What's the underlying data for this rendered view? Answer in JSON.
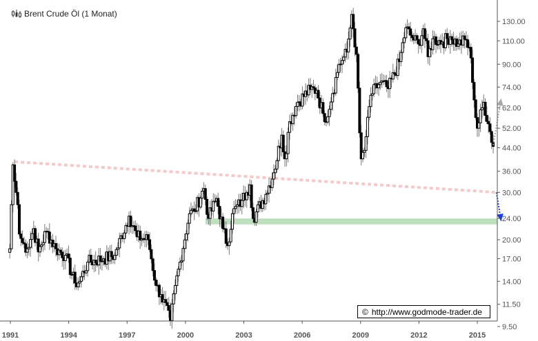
{
  "header": {
    "icon": "candlestick-chart-icon",
    "title": "Brent Crude Öl (1 Monat)"
  },
  "credit": {
    "symbol": "©",
    "text": "http://www.godmode-trader.de"
  },
  "colors": {
    "up_fill": "#ffffff",
    "down_fill": "#000000",
    "candle_outline": "#000000",
    "wick": "#777777",
    "resistance_line": "#f7c8c8",
    "support_zone": "#bfe0bf",
    "target_down_arrow": "#1a3fe0",
    "target_up_arrow": "#a8a8a8",
    "axis": "#555555"
  },
  "chart_data": {
    "type": "candlestick",
    "title": "Brent Crude Öl (1 Monat)",
    "xlabel": "",
    "ylabel": "",
    "y_scale": "log",
    "ylim": [
      9.2,
      150
    ],
    "y_ticks": [
      130.0,
      110.0,
      90.0,
      74.0,
      62.0,
      52.0,
      44.0,
      36.0,
      30.0,
      24.0,
      20.0,
      17.0,
      14.0,
      11.5,
      9.5
    ],
    "y_tick_labels": [
      "130.00",
      "110.00",
      "90.00",
      "74.00",
      "62.00",
      "52.00",
      "44.00",
      "36.00",
      "30.00",
      "24.00",
      "20.00",
      "17.00",
      "14.00",
      "11.50",
      "9.50"
    ],
    "x_ticks": [
      "1991",
      "1994",
      "1997",
      "2000",
      "2003",
      "2006",
      "2009",
      "2012",
      "2015"
    ],
    "x_range": [
      "1990-07",
      "2016-01"
    ],
    "legend_position": "none",
    "grid": false,
    "annotations": [
      {
        "type": "dotted_trendline",
        "label": "descending resistance",
        "from": {
          "date": "1990-10",
          "price": 39
        },
        "to": {
          "date": "2016-02",
          "price": 30
        },
        "color": "#f7c8c8"
      },
      {
        "type": "horizontal_zone",
        "label": "support zone",
        "from_date": "2000-10",
        "price_low": 22.8,
        "price_high": 24.0,
        "color": "#bfe0bf"
      },
      {
        "type": "dotted_arrow",
        "label": "downside target",
        "from": {
          "date": "2016-01",
          "price": 30
        },
        "to": {
          "date": "2016-04",
          "price": 23.5
        },
        "color": "#1a3fe0"
      },
      {
        "type": "dotted_arrow",
        "label": "upside target",
        "from": {
          "date": "2015-11",
          "price": 45
        },
        "to": {
          "date": "2016-04",
          "price": 67
        },
        "color": "#a8a8a8"
      }
    ],
    "monthly_close_anchors": [
      [
        "1990-07",
        18.5
      ],
      [
        "1990-08",
        27.0
      ],
      [
        "1990-09",
        38.0
      ],
      [
        "1990-10",
        33.0
      ],
      [
        "1990-11",
        30.0
      ],
      [
        "1990-12",
        27.0
      ],
      [
        "1991-01",
        21.0
      ],
      [
        "1991-03",
        19.5
      ],
      [
        "1991-06",
        18.5
      ],
      [
        "1991-10",
        22.0
      ],
      [
        "1992-01",
        18.0
      ],
      [
        "1992-06",
        21.5
      ],
      [
        "1992-12",
        18.5
      ],
      [
        "1993-06",
        17.5
      ],
      [
        "1993-12",
        13.8
      ],
      [
        "1994-03",
        14.0
      ],
      [
        "1994-08",
        16.5
      ],
      [
        "1995-06",
        17.0
      ],
      [
        "1996-01",
        17.5
      ],
      [
        "1996-10",
        24.5
      ],
      [
        "1997-03",
        20.5
      ],
      [
        "1997-10",
        20.0
      ],
      [
        "1998-03",
        13.5
      ],
      [
        "1998-06",
        12.5
      ],
      [
        "1998-12",
        10.0
      ],
      [
        "1999-03",
        13.5
      ],
      [
        "1999-06",
        16.5
      ],
      [
        "1999-12",
        25.0
      ],
      [
        "2000-03",
        25.5
      ],
      [
        "2000-09",
        31.0
      ],
      [
        "2000-12",
        24.0
      ],
      [
        "2001-05",
        28.5
      ],
      [
        "2001-09",
        22.0
      ],
      [
        "2001-12",
        19.0
      ],
      [
        "2002-03",
        25.0
      ],
      [
        "2002-09",
        28.0
      ],
      [
        "2002-12",
        30.0
      ],
      [
        "2003-02",
        32.0
      ],
      [
        "2003-04",
        24.0
      ],
      [
        "2003-12",
        29.5
      ],
      [
        "2004-05",
        35.5
      ],
      [
        "2004-10",
        49.0
      ],
      [
        "2004-12",
        40.0
      ],
      [
        "2005-03",
        55.0
      ],
      [
        "2005-08",
        65.0
      ],
      [
        "2006-04",
        72.5
      ],
      [
        "2006-08",
        72.0
      ],
      [
        "2006-12",
        59.0
      ],
      [
        "2007-01",
        55.0
      ],
      [
        "2007-06",
        70.0
      ],
      [
        "2007-10",
        90.0
      ],
      [
        "2007-12",
        93.0
      ],
      [
        "2008-03",
        100.0
      ],
      [
        "2008-06",
        138.0
      ],
      [
        "2008-07",
        122.0
      ],
      [
        "2008-09",
        98.0
      ],
      [
        "2008-11",
        50.0
      ],
      [
        "2008-12",
        40.0
      ],
      [
        "2009-02",
        43.0
      ],
      [
        "2009-06",
        69.0
      ],
      [
        "2009-12",
        77.0
      ],
      [
        "2010-05",
        73.0
      ],
      [
        "2010-12",
        92.0
      ],
      [
        "2011-04",
        123.0
      ],
      [
        "2011-08",
        113.0
      ],
      [
        "2011-12",
        107.0
      ],
      [
        "2012-03",
        122.0
      ],
      [
        "2012-06",
        96.0
      ],
      [
        "2012-09",
        112.0
      ],
      [
        "2013-03",
        109.0
      ],
      [
        "2013-08",
        114.0
      ],
      [
        "2014-01",
        107.0
      ],
      [
        "2014-06",
        111.0
      ],
      [
        "2014-09",
        95.0
      ],
      [
        "2014-12",
        57.0
      ],
      [
        "2015-01",
        52.0
      ],
      [
        "2015-05",
        65.0
      ],
      [
        "2015-08",
        54.0
      ],
      [
        "2015-11",
        44.5
      ],
      [
        "2015-12",
        37.0
      ],
      [
        "2016-01",
        31.0
      ]
    ]
  }
}
